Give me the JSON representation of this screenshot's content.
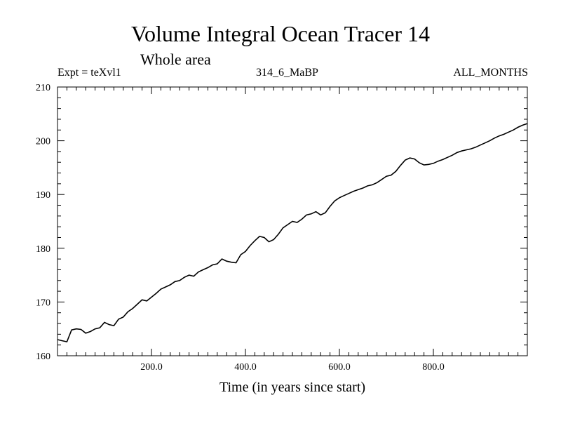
{
  "chart_data": {
    "type": "line",
    "title": "Volume Integral Ocean Tracer 14",
    "subtitle": "Whole area",
    "expt_label": "Expt = teXvl1",
    "run_label": "314_6_MaBP",
    "months_label": "ALL_MONTHS",
    "xlabel": "Time (in years since start)",
    "ylabel": "",
    "xlim": [
      0,
      1000
    ],
    "ylim": [
      160,
      210
    ],
    "x_ticks": [
      200,
      400,
      600,
      800
    ],
    "x_tick_labels": [
      "200.0",
      "400.0",
      "600.0",
      "800.0"
    ],
    "y_ticks": [
      160,
      170,
      180,
      190,
      200,
      210
    ],
    "y_tick_labels": [
      "160",
      "170",
      "180",
      "190",
      "200",
      "210"
    ],
    "series": [
      {
        "name": "Volume Integral Ocean Tracer 14",
        "x": [
          0,
          10,
          20,
          30,
          40,
          50,
          60,
          70,
          80,
          90,
          100,
          110,
          120,
          130,
          140,
          150,
          160,
          170,
          180,
          190,
          200,
          210,
          220,
          230,
          240,
          250,
          260,
          270,
          280,
          290,
          300,
          310,
          320,
          330,
          340,
          350,
          360,
          370,
          380,
          390,
          400,
          410,
          420,
          430,
          440,
          450,
          460,
          470,
          480,
          490,
          500,
          510,
          520,
          530,
          540,
          550,
          560,
          570,
          580,
          590,
          600,
          610,
          620,
          630,
          640,
          650,
          660,
          670,
          680,
          690,
          700,
          710,
          720,
          730,
          740,
          750,
          760,
          770,
          780,
          790,
          800,
          810,
          820,
          830,
          840,
          850,
          860,
          870,
          880,
          890,
          900,
          910,
          920,
          930,
          940,
          950,
          960,
          970,
          980,
          990,
          1000
        ],
        "values": [
          163.0,
          162.8,
          162.6,
          164.8,
          165.0,
          164.9,
          164.2,
          164.5,
          165.0,
          165.2,
          166.2,
          165.8,
          165.6,
          166.8,
          167.2,
          168.2,
          168.8,
          169.6,
          170.4,
          170.2,
          170.9,
          171.6,
          172.4,
          172.8,
          173.2,
          173.8,
          174.0,
          174.6,
          175.0,
          174.8,
          175.6,
          176.0,
          176.4,
          176.9,
          177.1,
          178.0,
          177.6,
          177.4,
          177.3,
          178.8,
          179.4,
          180.5,
          181.4,
          182.2,
          182.0,
          181.2,
          181.6,
          182.6,
          183.8,
          184.4,
          185.0,
          184.8,
          185.4,
          186.2,
          186.4,
          186.8,
          186.2,
          186.6,
          187.8,
          188.8,
          189.4,
          189.8,
          190.2,
          190.6,
          190.9,
          191.2,
          191.6,
          191.8,
          192.2,
          192.8,
          193.4,
          193.6,
          194.3,
          195.4,
          196.4,
          196.8,
          196.6,
          195.9,
          195.5,
          195.6,
          195.8,
          196.2,
          196.5,
          196.9,
          197.3,
          197.8,
          198.1,
          198.3,
          198.5,
          198.8,
          199.2,
          199.6,
          200.0,
          200.5,
          200.9,
          201.2,
          201.6,
          202.0,
          202.5,
          202.9,
          203.2
        ]
      }
    ]
  }
}
